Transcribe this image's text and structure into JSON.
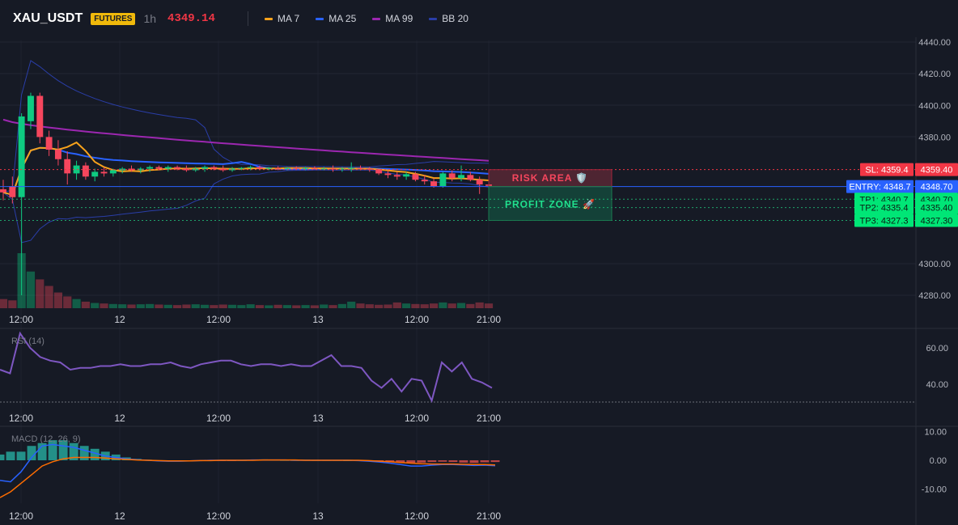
{
  "header": {
    "symbol": "XAU_USDT",
    "badge": "FUTURES",
    "timeframe": "1h",
    "last_price": "4349.14",
    "indicators": [
      {
        "label": "MA 7",
        "color": "#f7a21b"
      },
      {
        "label": "MA 25",
        "color": "#2962ff"
      },
      {
        "label": "MA 99",
        "color": "#9c27b0"
      },
      {
        "label": "BB 20",
        "color": "#2a3ea8"
      }
    ]
  },
  "colors": {
    "up": "#0ecb81",
    "down": "#f6465d",
    "ma7": "#f7a21b",
    "ma25": "#2962ff",
    "ma99": "#9c27b0",
    "bb": "#2a3ea8",
    "entry": "#2962ff",
    "sl": "#f23645",
    "tp": "#00e676",
    "rsi": "#7e57c2",
    "macd": "#2962ff",
    "signal": "#ff6d00"
  },
  "price_levels": {
    "sl": {
      "label": "SL: 4359.4",
      "value": 4359.4,
      "axis_label": "4359.40"
    },
    "entry": {
      "label": "ENTRY: 4348.7",
      "value": 4348.7,
      "axis_label": "4348.70"
    },
    "tp1": {
      "label": "TP1: 4340.7",
      "value": 4340.7,
      "axis_label": "4340.70"
    },
    "tp2": {
      "label": "TP2: 4335.4",
      "value": 4335.4,
      "axis_label": "4335.40"
    },
    "tp3": {
      "label": "TP3: 4327.3",
      "value": 4327.3,
      "axis_label": "4327.30"
    }
  },
  "zones": {
    "risk": "RISK AREA 🛡️",
    "profit": "PROFIT ZONE 🚀"
  },
  "time_axis": {
    "ticks": [
      "12:00",
      "12",
      "12:00",
      "13",
      "12:00",
      "21:00"
    ]
  },
  "chart_data": [
    {
      "type": "candlestick",
      "title": "",
      "ylim": [
        4270,
        4440
      ],
      "y_ticks": [
        "4440.00",
        "4420.00",
        "4400.00",
        "4380.00",
        "4300.00",
        "4280.00"
      ],
      "candles": [
        {
          "o": 4347.0,
          "h": 4353.0,
          "l": 4340.0,
          "c": 4345.0
        },
        {
          "o": 4349.0,
          "h": 4355.0,
          "l": 4338.0,
          "c": 4342.0
        },
        {
          "o": 4342.0,
          "h": 4395.0,
          "l": 4280.0,
          "c": 4393.0
        },
        {
          "o": 4390.0,
          "h": 4408.0,
          "l": 4385.0,
          "c": 4406.0
        },
        {
          "o": 4406.0,
          "h": 4408.0,
          "l": 4376.0,
          "c": 4380.0
        },
        {
          "o": 4380.0,
          "h": 4384.0,
          "l": 4368.0,
          "c": 4372.0
        },
        {
          "o": 4372.0,
          "h": 4378.0,
          "l": 4362.0,
          "c": 4366.0
        },
        {
          "o": 4366.0,
          "h": 4371.0,
          "l": 4350.0,
          "c": 4357.0
        },
        {
          "o": 4357.0,
          "h": 4365.0,
          "l": 4353.0,
          "c": 4362.0
        },
        {
          "o": 4362.0,
          "h": 4364.0,
          "l": 4353.0,
          "c": 4355.0
        },
        {
          "o": 4355.0,
          "h": 4360.0,
          "l": 4352.0,
          "c": 4358.0
        },
        {
          "o": 4358.0,
          "h": 4361.0,
          "l": 4355.0,
          "c": 4357.0
        },
        {
          "o": 4357.0,
          "h": 4360.0,
          "l": 4355.0,
          "c": 4359.0
        },
        {
          "o": 4359.0,
          "h": 4361.0,
          "l": 4357.0,
          "c": 4360.0
        },
        {
          "o": 4360.0,
          "h": 4362.0,
          "l": 4358.0,
          "c": 4359.0
        },
        {
          "o": 4359.0,
          "h": 4361.0,
          "l": 4357.0,
          "c": 4360.0
        },
        {
          "o": 4360.0,
          "h": 4362.0,
          "l": 4358.0,
          "c": 4361.0
        },
        {
          "o": 4361.0,
          "h": 4362.0,
          "l": 4359.0,
          "c": 4360.0
        },
        {
          "o": 4360.0,
          "h": 4362.0,
          "l": 4358.0,
          "c": 4361.0
        },
        {
          "o": 4361.0,
          "h": 4362.0,
          "l": 4359.0,
          "c": 4360.0
        },
        {
          "o": 4360.0,
          "h": 4362.0,
          "l": 4358.0,
          "c": 4359.0
        },
        {
          "o": 4359.0,
          "h": 4361.0,
          "l": 4358.0,
          "c": 4360.0
        },
        {
          "o": 4360.0,
          "h": 4362.0,
          "l": 4358.0,
          "c": 4361.0
        },
        {
          "o": 4361.0,
          "h": 4362.0,
          "l": 4359.0,
          "c": 4360.0
        },
        {
          "o": 4360.0,
          "h": 4362.0,
          "l": 4358.0,
          "c": 4359.0
        },
        {
          "o": 4359.0,
          "h": 4361.0,
          "l": 4358.0,
          "c": 4360.0
        },
        {
          "o": 4360.0,
          "h": 4361.0,
          "l": 4359.0,
          "c": 4360.5
        },
        {
          "o": 4360.5,
          "h": 4362.0,
          "l": 4359.0,
          "c": 4361.0
        },
        {
          "o": 4361.0,
          "h": 4362.0,
          "l": 4359.0,
          "c": 4360.0
        },
        {
          "o": 4360.0,
          "h": 4361.0,
          "l": 4359.0,
          "c": 4360.5
        },
        {
          "o": 4360.5,
          "h": 4361.5,
          "l": 4359.0,
          "c": 4360.0
        },
        {
          "o": 4360.0,
          "h": 4361.0,
          "l": 4359.0,
          "c": 4360.5
        },
        {
          "o": 4360.5,
          "h": 4361.5,
          "l": 4359.5,
          "c": 4360.0
        },
        {
          "o": 4360.0,
          "h": 4361.0,
          "l": 4359.0,
          "c": 4360.5
        },
        {
          "o": 4360.5,
          "h": 4361.5,
          "l": 4359.5,
          "c": 4360.0
        },
        {
          "o": 4360.0,
          "h": 4361.0,
          "l": 4359.0,
          "c": 4360.0
        },
        {
          "o": 4360.0,
          "h": 4362.0,
          "l": 4358.0,
          "c": 4359.5
        },
        {
          "o": 4359.5,
          "h": 4361.0,
          "l": 4358.0,
          "c": 4360.0
        },
        {
          "o": 4360.0,
          "h": 4364.0,
          "l": 4358.0,
          "c": 4360.5
        },
        {
          "o": 4360.5,
          "h": 4362.0,
          "l": 4359.0,
          "c": 4360.0
        },
        {
          "o": 4360.0,
          "h": 4361.0,
          "l": 4358.0,
          "c": 4359.5
        },
        {
          "o": 4359.5,
          "h": 4360.0,
          "l": 4356.0,
          "c": 4357.0
        },
        {
          "o": 4357.0,
          "h": 4359.0,
          "l": 4354.0,
          "c": 4356.0
        },
        {
          "o": 4356.0,
          "h": 4358.0,
          "l": 4353.0,
          "c": 4355.0
        },
        {
          "o": 4355.0,
          "h": 4358.0,
          "l": 4353.0,
          "c": 4356.5
        },
        {
          "o": 4356.5,
          "h": 4358.0,
          "l": 4352.0,
          "c": 4353.0
        },
        {
          "o": 4353.0,
          "h": 4356.0,
          "l": 4350.0,
          "c": 4352.0
        },
        {
          "o": 4352.0,
          "h": 4354.0,
          "l": 4348.0,
          "c": 4349.0
        },
        {
          "o": 4349.0,
          "h": 4358.0,
          "l": 4348.0,
          "c": 4357.0
        },
        {
          "o": 4357.0,
          "h": 4359.0,
          "l": 4352.0,
          "c": 4354.0
        },
        {
          "o": 4354.0,
          "h": 4362.0,
          "l": 4352.0,
          "c": 4356.0
        },
        {
          "o": 4356.0,
          "h": 4358.0,
          "l": 4352.0,
          "c": 4353.0
        },
        {
          "o": 4353.0,
          "h": 4355.0,
          "l": 4344.0,
          "c": 4350.0
        },
        {
          "o": 4350.0,
          "h": 4352.0,
          "l": 4346.0,
          "c": 4349.14
        }
      ],
      "volume": [
        35,
        30,
        210,
        140,
        110,
        85,
        60,
        45,
        35,
        25,
        20,
        18,
        16,
        15,
        14,
        15,
        16,
        14,
        13,
        12,
        14,
        15,
        13,
        12,
        14,
        13,
        12,
        15,
        12,
        11,
        13,
        12,
        11,
        12,
        11,
        14,
        12,
        16,
        25,
        18,
        15,
        13,
        14,
        22,
        18,
        16,
        15,
        18,
        22,
        18,
        20,
        16,
        22,
        18
      ]
    },
    {
      "type": "line",
      "title": "RSI (14)",
      "ylim": [
        25,
        70
      ],
      "y_ticks": [
        "60.00",
        "40.00"
      ],
      "values": [
        48,
        46,
        68,
        60,
        55,
        53,
        52,
        48,
        49,
        49,
        50,
        50,
        51,
        50,
        50,
        51,
        51,
        52,
        50,
        49,
        51,
        52,
        53,
        53,
        51,
        50,
        51,
        51,
        50,
        51,
        50,
        50,
        53,
        56,
        50,
        50,
        49,
        42,
        38,
        43,
        36,
        43,
        42,
        31,
        52,
        47,
        52,
        43,
        41,
        38
      ]
    },
    {
      "type": "bar",
      "title": "MACD (12, 26, 9)",
      "ylim": [
        -15,
        12
      ],
      "y_ticks": [
        "10.00",
        "0.00",
        "-10.00"
      ],
      "histogram": [
        2,
        3,
        3,
        5,
        6,
        7,
        7,
        6,
        5,
        4,
        3,
        2,
        1,
        0.5,
        0.2,
        -0.2,
        -0.3,
        -0.3,
        -0.2,
        -0.2,
        -0.1,
        -0.2,
        -0.1,
        0.1,
        0.2,
        0.3,
        0.2,
        0.1,
        0.1,
        0.2,
        0.1,
        0.1,
        0.1,
        0,
        -0.1,
        -0.2,
        -0.4,
        -0.6,
        -0.8,
        -0.9,
        -0.8,
        -0.6,
        -0.5,
        -0.6,
        -0.8,
        -0.9,
        -0.7,
        -0.6
      ],
      "macd": [
        -7,
        -7.5,
        -4,
        1,
        5,
        5.5,
        5,
        4.5,
        3.5,
        2.5,
        1.5,
        1,
        0.5,
        0.2,
        0,
        -0.2,
        -0.3,
        -0.3,
        -0.2,
        -0.1,
        0,
        0,
        0,
        0,
        0.1,
        0.1,
        0.1,
        0.1,
        0,
        0,
        0,
        0,
        0,
        0,
        -0.1,
        -0.3,
        -0.6,
        -1,
        -1.5,
        -2,
        -2,
        -1.7,
        -1.5,
        -1.5,
        -1.6,
        -1.8,
        -1.7,
        -1.9
      ],
      "signal": [
        -13,
        -11,
        -8,
        -5,
        -2,
        -0.5,
        0.5,
        1,
        1,
        1,
        0.8,
        0.5,
        0.3,
        0.1,
        0,
        -0.1,
        -0.2,
        -0.2,
        -0.2,
        -0.1,
        -0.1,
        0,
        0,
        0,
        0,
        0.1,
        0.1,
        0.1,
        0.1,
        0,
        0,
        0,
        0,
        0,
        0,
        -0.1,
        -0.3,
        -0.5,
        -0.8,
        -1,
        -1.2,
        -1.3,
        -1.3,
        -1.3,
        -1.4,
        -1.5,
        -1.5,
        -1.6
      ]
    }
  ]
}
